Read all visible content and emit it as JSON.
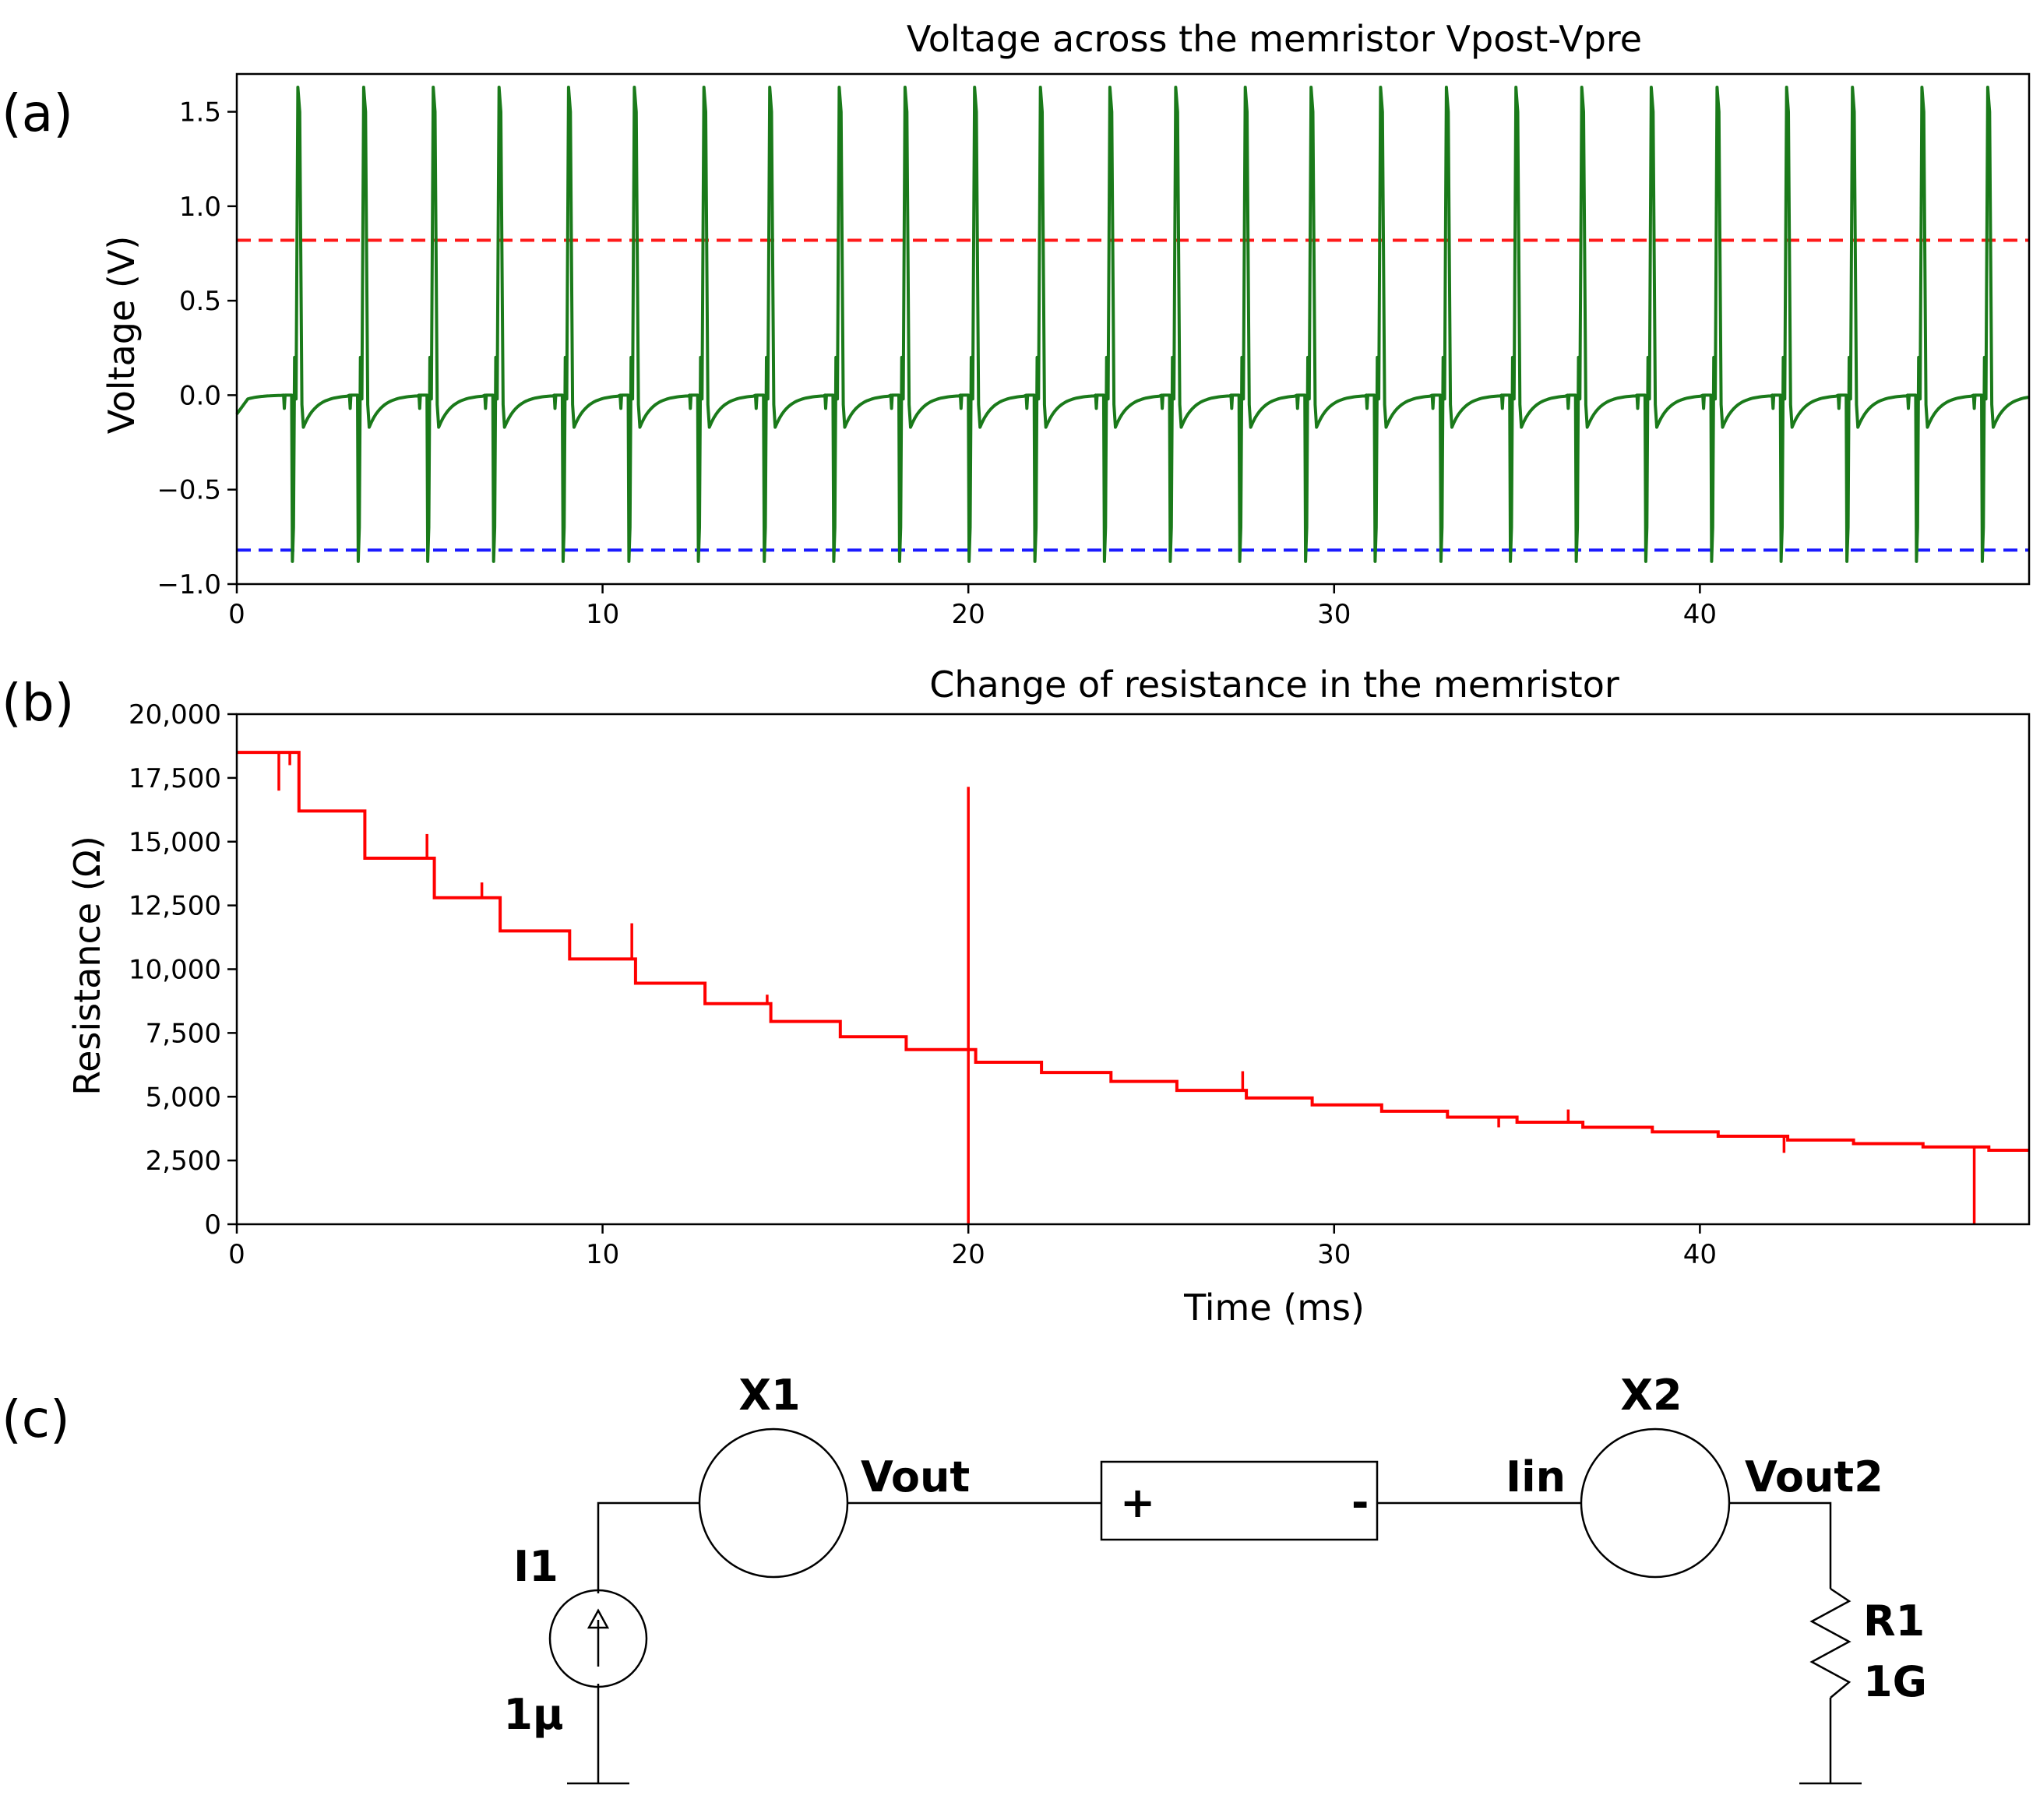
{
  "panels": {
    "a": {
      "label": "(a)"
    },
    "b": {
      "label": "(b)"
    },
    "c": {
      "label": "(c)"
    }
  },
  "chart_data": [
    {
      "type": "line",
      "title": "Voltage across the memristor Vpost-Vpre",
      "xlabel": "",
      "ylabel": "Voltage (V)",
      "xlim": [
        0,
        49
      ],
      "ylim": [
        -1.0,
        1.7
      ],
      "xticks": [
        0,
        10,
        20,
        30,
        40
      ],
      "xtick_labels": [
        "0",
        "10",
        "20",
        "30",
        "40"
      ],
      "yticks": [
        -1.0,
        -0.5,
        0.0,
        0.5,
        1.0,
        1.5
      ],
      "ytick_labels": [
        "−1.0",
        "−0.5",
        "0.0",
        "0.5",
        "1.0",
        "1.5"
      ],
      "grid": false,
      "spike_times": [
        1.7,
        3.5,
        5.4,
        7.2,
        9.1,
        10.9,
        12.8,
        14.6,
        16.5,
        18.3,
        20.2,
        22.0,
        23.9,
        25.7,
        27.6,
        29.4,
        31.3,
        33.1,
        35.0,
        36.8,
        38.7,
        40.5,
        42.4,
        44.2,
        46.1,
        47.9
      ],
      "spike_peak": 1.63,
      "spike_trough": -0.88,
      "pre_spike_pulse": 0.2,
      "after_spike_undershoot": -0.17,
      "baseline": 0.0,
      "series": [
        {
          "name": "Vpost-Vpre",
          "color": "#1a7a1a",
          "style": "solid"
        },
        {
          "name": "upper threshold",
          "value": 0.82,
          "color": "#ff1a1a",
          "style": "dashed"
        },
        {
          "name": "lower threshold",
          "value": -0.82,
          "color": "#1a1aff",
          "style": "dashed"
        }
      ]
    },
    {
      "type": "line",
      "title": "Change of resistance in the memristor",
      "xlabel": "Time (ms)",
      "ylabel": "Resistance (Ω)",
      "xlim": [
        0,
        49
      ],
      "ylim": [
        0,
        20000
      ],
      "xticks": [
        0,
        10,
        20,
        30,
        40
      ],
      "xtick_labels": [
        "0",
        "10",
        "20",
        "30",
        "40"
      ],
      "yticks": [
        0,
        2500,
        5000,
        7500,
        10000,
        12500,
        15000,
        17500,
        20000
      ],
      "ytick_labels": [
        "0",
        "2,500",
        "5,000",
        "7,500",
        "10,000",
        "12,500",
        "15,000",
        "17,500",
        "20,000"
      ],
      "grid": false,
      "color": "#ff0000",
      "step_times": [
        0,
        1.7,
        3.5,
        5.4,
        7.2,
        9.1,
        10.9,
        12.8,
        14.6,
        16.5,
        18.3,
        20.2,
        22.0,
        23.9,
        25.7,
        27.6,
        29.4,
        31.3,
        33.1,
        35.0,
        36.8,
        38.7,
        40.5,
        42.4,
        44.2,
        46.1,
        47.9
      ],
      "step_values": [
        18500,
        16200,
        14350,
        12800,
        11500,
        10400,
        9450,
        8650,
        7950,
        7350,
        6850,
        6350,
        5950,
        5600,
        5250,
        4950,
        4680,
        4430,
        4200,
        4000,
        3800,
        3620,
        3450,
        3300,
        3160,
        3030,
        2900
      ],
      "glitches": [
        {
          "t": 1.15,
          "v": 17000
        },
        {
          "t": 1.45,
          "v": 18000
        },
        {
          "t": 5.2,
          "v": 15300
        },
        {
          "t": 6.7,
          "v": 13400
        },
        {
          "t": 10.8,
          "v": 11800
        },
        {
          "t": 14.5,
          "v": 9000
        },
        {
          "t": 20.0,
          "v": 17150
        },
        {
          "t": 20.0,
          "v": 0
        },
        {
          "t": 27.5,
          "v": 6000
        },
        {
          "t": 34.5,
          "v": 3800
        },
        {
          "t": 36.4,
          "v": 4500
        },
        {
          "t": 42.3,
          "v": 2800
        },
        {
          "t": 47.5,
          "v": 0
        }
      ]
    }
  ],
  "circuit": {
    "x1_label": "X1",
    "x2_label": "X2",
    "vout_label": "Vout",
    "iin_label": "Iin",
    "vout2_label": "Vout2",
    "i1_label": "I1",
    "i1_value": "1μ",
    "r1_label": "R1",
    "r1_value": "1G",
    "plus_label": "+",
    "minus_label": "-"
  }
}
